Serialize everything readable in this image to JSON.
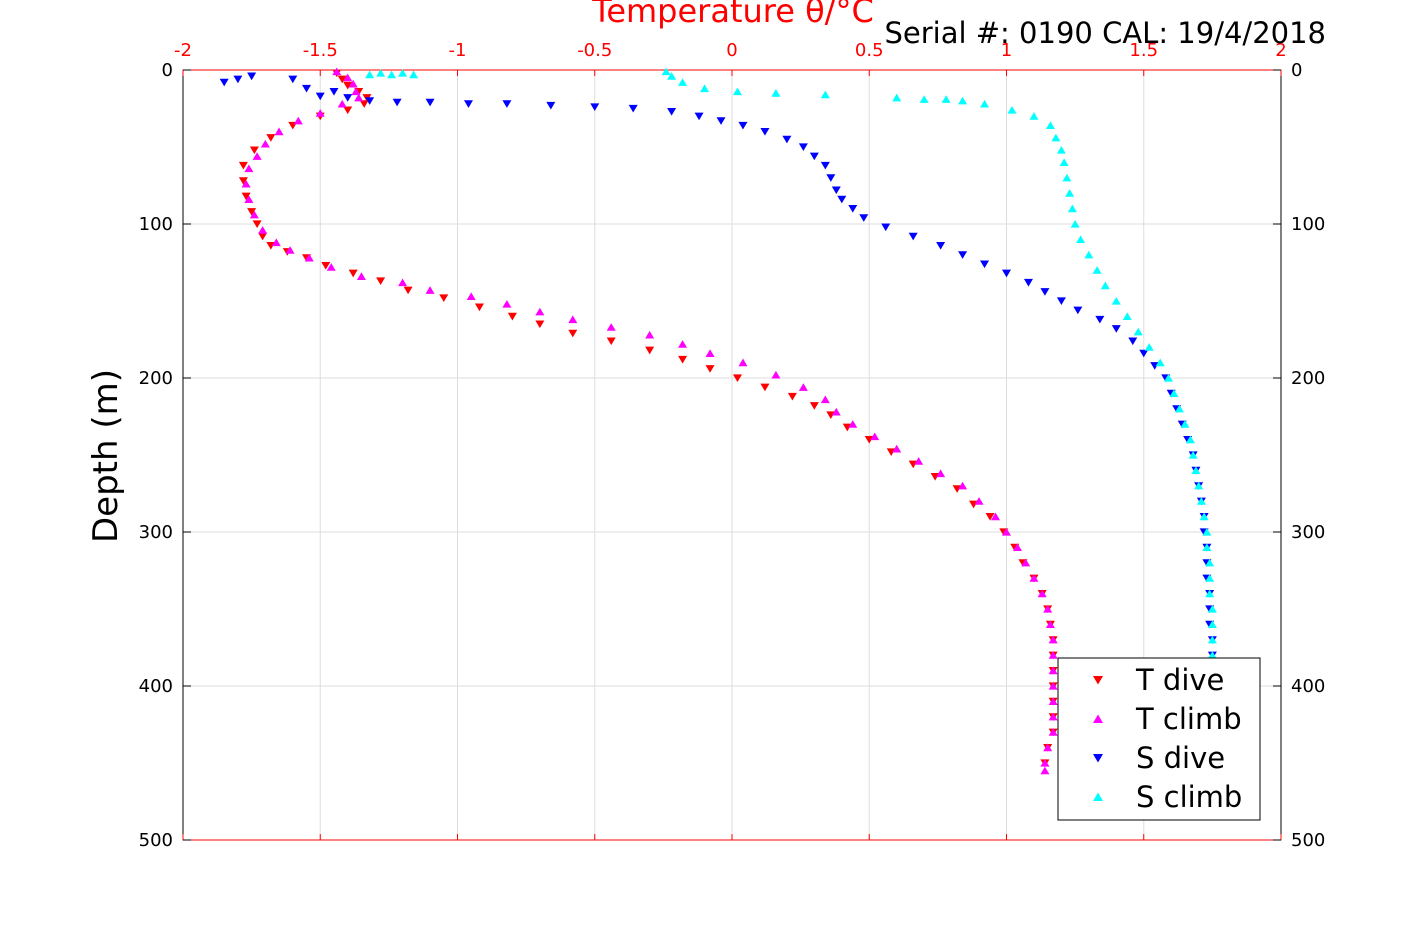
{
  "chart_data": {
    "type": "scatter",
    "title": "Temperature θ/°C",
    "annotation": "Serial #: 0190  CAL: 19/4/2018",
    "ylabel": "Depth (m)",
    "y_reversed": true,
    "xlim": [
      -2,
      2
    ],
    "ylim": [
      0,
      500
    ],
    "x_ticks": [
      -2,
      -1.5,
      -1,
      -0.5,
      0,
      0.5,
      1,
      1.5,
      2
    ],
    "y_ticks": [
      0,
      100,
      200,
      300,
      400,
      500
    ],
    "grid": true,
    "legend_position": "bottom-right",
    "series": [
      {
        "name": "T dive",
        "marker": "triangle-down",
        "color": "#ff0000",
        "points": [
          [
            -1.44,
            2
          ],
          [
            -1.42,
            6
          ],
          [
            -1.4,
            10
          ],
          [
            -1.36,
            14
          ],
          [
            -1.33,
            18
          ],
          [
            -1.34,
            22
          ],
          [
            -1.4,
            26
          ],
          [
            -1.5,
            30
          ],
          [
            -1.6,
            36
          ],
          [
            -1.68,
            44
          ],
          [
            -1.74,
            52
          ],
          [
            -1.78,
            62
          ],
          [
            -1.78,
            72
          ],
          [
            -1.77,
            82
          ],
          [
            -1.75,
            92
          ],
          [
            -1.73,
            100
          ],
          [
            -1.71,
            108
          ],
          [
            -1.68,
            114
          ],
          [
            -1.62,
            118
          ],
          [
            -1.55,
            122
          ],
          [
            -1.48,
            127
          ],
          [
            -1.38,
            132
          ],
          [
            -1.28,
            137
          ],
          [
            -1.18,
            143
          ],
          [
            -1.05,
            148
          ],
          [
            -0.92,
            154
          ],
          [
            -0.8,
            160
          ],
          [
            -0.7,
            165
          ],
          [
            -0.58,
            171
          ],
          [
            -0.44,
            176
          ],
          [
            -0.3,
            182
          ],
          [
            -0.18,
            188
          ],
          [
            -0.08,
            194
          ],
          [
            0.02,
            200
          ],
          [
            0.12,
            206
          ],
          [
            0.22,
            212
          ],
          [
            0.3,
            218
          ],
          [
            0.36,
            224
          ],
          [
            0.42,
            232
          ],
          [
            0.5,
            240
          ],
          [
            0.58,
            248
          ],
          [
            0.66,
            256
          ],
          [
            0.74,
            264
          ],
          [
            0.82,
            272
          ],
          [
            0.88,
            282
          ],
          [
            0.94,
            290
          ],
          [
            0.99,
            300
          ],
          [
            1.03,
            310
          ],
          [
            1.06,
            320
          ],
          [
            1.1,
            330
          ],
          [
            1.13,
            340
          ],
          [
            1.15,
            350
          ],
          [
            1.16,
            360
          ],
          [
            1.17,
            370
          ],
          [
            1.17,
            380
          ],
          [
            1.17,
            390
          ],
          [
            1.17,
            400
          ],
          [
            1.17,
            410
          ],
          [
            1.17,
            420
          ],
          [
            1.17,
            430
          ],
          [
            1.15,
            440
          ],
          [
            1.14,
            450
          ]
        ]
      },
      {
        "name": "T climb",
        "marker": "triangle-up",
        "color": "#ff00ff",
        "points": [
          [
            -1.44,
            1
          ],
          [
            -1.4,
            5
          ],
          [
            -1.38,
            9
          ],
          [
            -1.37,
            14
          ],
          [
            -1.36,
            18
          ],
          [
            -1.42,
            22
          ],
          [
            -1.5,
            28
          ],
          [
            -1.58,
            33
          ],
          [
            -1.65,
            40
          ],
          [
            -1.7,
            48
          ],
          [
            -1.73,
            56
          ],
          [
            -1.76,
            64
          ],
          [
            -1.77,
            74
          ],
          [
            -1.76,
            84
          ],
          [
            -1.74,
            94
          ],
          [
            -1.71,
            104
          ],
          [
            -1.66,
            112
          ],
          [
            -1.61,
            117
          ],
          [
            -1.54,
            122
          ],
          [
            -1.46,
            128
          ],
          [
            -1.35,
            134
          ],
          [
            -1.2,
            138
          ],
          [
            -1.1,
            143
          ],
          [
            -0.95,
            147
          ],
          [
            -0.82,
            152
          ],
          [
            -0.7,
            157
          ],
          [
            -0.58,
            162
          ],
          [
            -0.44,
            167
          ],
          [
            -0.3,
            172
          ],
          [
            -0.18,
            178
          ],
          [
            -0.08,
            184
          ],
          [
            0.04,
            190
          ],
          [
            0.16,
            198
          ],
          [
            0.26,
            206
          ],
          [
            0.34,
            214
          ],
          [
            0.38,
            222
          ],
          [
            0.44,
            230
          ],
          [
            0.52,
            238
          ],
          [
            0.6,
            246
          ],
          [
            0.68,
            254
          ],
          [
            0.76,
            262
          ],
          [
            0.84,
            270
          ],
          [
            0.9,
            280
          ],
          [
            0.96,
            290
          ],
          [
            1.0,
            300
          ],
          [
            1.04,
            310
          ],
          [
            1.07,
            320
          ],
          [
            1.1,
            330
          ],
          [
            1.13,
            340
          ],
          [
            1.15,
            350
          ],
          [
            1.16,
            360
          ],
          [
            1.17,
            370
          ],
          [
            1.17,
            380
          ],
          [
            1.17,
            390
          ],
          [
            1.17,
            400
          ],
          [
            1.17,
            410
          ],
          [
            1.17,
            420
          ],
          [
            1.17,
            430
          ],
          [
            1.15,
            440
          ],
          [
            1.14,
            450
          ],
          [
            1.14,
            455
          ]
        ]
      },
      {
        "name": "S dive",
        "marker": "triangle-down",
        "color": "#0000ff",
        "points": [
          [
            -1.85,
            8
          ],
          [
            -1.8,
            6
          ],
          [
            -1.75,
            4
          ],
          [
            -1.6,
            6
          ],
          [
            -1.55,
            12
          ],
          [
            -1.5,
            17
          ],
          [
            -1.45,
            14
          ],
          [
            -1.4,
            18
          ],
          [
            -1.32,
            20
          ],
          [
            -1.22,
            21
          ],
          [
            -1.1,
            21
          ],
          [
            -0.96,
            22
          ],
          [
            -0.82,
            22
          ],
          [
            -0.66,
            23
          ],
          [
            -0.5,
            24
          ],
          [
            -0.36,
            25
          ],
          [
            -0.22,
            27
          ],
          [
            -0.12,
            30
          ],
          [
            -0.04,
            33
          ],
          [
            0.04,
            36
          ],
          [
            0.12,
            40
          ],
          [
            0.2,
            45
          ],
          [
            0.26,
            50
          ],
          [
            0.3,
            56
          ],
          [
            0.34,
            62
          ],
          [
            0.36,
            70
          ],
          [
            0.38,
            78
          ],
          [
            0.4,
            84
          ],
          [
            0.44,
            90
          ],
          [
            0.48,
            96
          ],
          [
            0.56,
            102
          ],
          [
            0.66,
            108
          ],
          [
            0.76,
            114
          ],
          [
            0.84,
            120
          ],
          [
            0.92,
            126
          ],
          [
            1.0,
            132
          ],
          [
            1.08,
            138
          ],
          [
            1.14,
            144
          ],
          [
            1.2,
            150
          ],
          [
            1.26,
            156
          ],
          [
            1.34,
            162
          ],
          [
            1.4,
            168
          ],
          [
            1.46,
            176
          ],
          [
            1.5,
            184
          ],
          [
            1.54,
            192
          ],
          [
            1.58,
            200
          ],
          [
            1.6,
            210
          ],
          [
            1.62,
            220
          ],
          [
            1.64,
            230
          ],
          [
            1.66,
            240
          ],
          [
            1.68,
            250
          ],
          [
            1.69,
            260
          ],
          [
            1.7,
            270
          ],
          [
            1.71,
            280
          ],
          [
            1.72,
            290
          ],
          [
            1.72,
            300
          ],
          [
            1.73,
            310
          ],
          [
            1.73,
            320
          ],
          [
            1.73,
            330
          ],
          [
            1.74,
            340
          ],
          [
            1.74,
            350
          ],
          [
            1.74,
            360
          ],
          [
            1.75,
            370
          ],
          [
            1.75,
            380
          ]
        ]
      },
      {
        "name": "S climb",
        "marker": "triangle-up",
        "color": "#00ffff",
        "points": [
          [
            -1.32,
            3
          ],
          [
            -1.28,
            2
          ],
          [
            -1.24,
            3
          ],
          [
            -1.2,
            2
          ],
          [
            -1.16,
            3
          ],
          [
            -0.24,
            1
          ],
          [
            -0.22,
            4
          ],
          [
            -0.18,
            8
          ],
          [
            -0.1,
            12
          ],
          [
            0.02,
            14
          ],
          [
            0.16,
            15
          ],
          [
            0.34,
            16
          ],
          [
            0.6,
            18
          ],
          [
            0.7,
            19
          ],
          [
            0.78,
            19
          ],
          [
            0.84,
            20
          ],
          [
            0.92,
            22
          ],
          [
            1.02,
            26
          ],
          [
            1.1,
            30
          ],
          [
            1.16,
            36
          ],
          [
            1.18,
            44
          ],
          [
            1.2,
            52
          ],
          [
            1.21,
            60
          ],
          [
            1.22,
            70
          ],
          [
            1.23,
            80
          ],
          [
            1.24,
            90
          ],
          [
            1.25,
            100
          ],
          [
            1.27,
            110
          ],
          [
            1.3,
            120
          ],
          [
            1.33,
            130
          ],
          [
            1.36,
            140
          ],
          [
            1.4,
            150
          ],
          [
            1.44,
            160
          ],
          [
            1.48,
            170
          ],
          [
            1.52,
            180
          ],
          [
            1.56,
            190
          ],
          [
            1.59,
            200
          ],
          [
            1.61,
            210
          ],
          [
            1.63,
            220
          ],
          [
            1.65,
            230
          ],
          [
            1.67,
            240
          ],
          [
            1.68,
            250
          ],
          [
            1.69,
            260
          ],
          [
            1.7,
            270
          ],
          [
            1.71,
            280
          ],
          [
            1.72,
            290
          ],
          [
            1.73,
            300
          ],
          [
            1.73,
            310
          ],
          [
            1.74,
            320
          ],
          [
            1.74,
            330
          ],
          [
            1.74,
            340
          ],
          [
            1.75,
            350
          ],
          [
            1.75,
            360
          ],
          [
            1.75,
            370
          ],
          [
            1.75,
            380
          ]
        ]
      }
    ]
  }
}
